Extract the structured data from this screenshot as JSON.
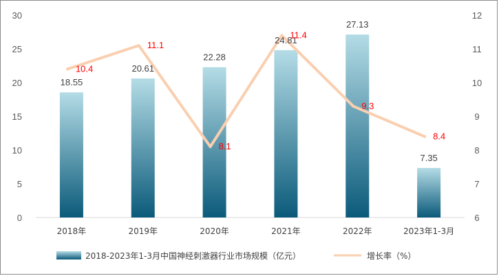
{
  "chart_data": {
    "type": "bar",
    "categories": [
      "2018年",
      "2019年",
      "2020年",
      "2021年",
      "2022年",
      "2023年1-3月"
    ],
    "series": [
      {
        "name": "2018-2023年1-3月中国神经刺激器行业市场规模（亿元）",
        "type": "bar",
        "axis": "left",
        "values": [
          18.55,
          20.61,
          22.28,
          24.81,
          27.13,
          7.35
        ],
        "color_top": "#b4dce6",
        "color_bottom": "#0b5a7a"
      },
      {
        "name": "增长率（%）",
        "type": "line",
        "axis": "right",
        "values": [
          10.4,
          11.1,
          8.1,
          11.4,
          9.3,
          8.4
        ],
        "color": "#f9cfb0",
        "label_color": "#ff0000"
      }
    ],
    "ylim_left": [
      0,
      30
    ],
    "yticks_left": [
      0,
      5,
      10,
      15,
      20,
      25,
      30
    ],
    "ylim_right": [
      6,
      12
    ],
    "yticks_right": [
      6,
      7,
      8,
      9,
      10,
      11,
      12
    ],
    "title": "",
    "xlabel": "",
    "ylabel": "",
    "grid": false,
    "legend_position": "bottom"
  }
}
